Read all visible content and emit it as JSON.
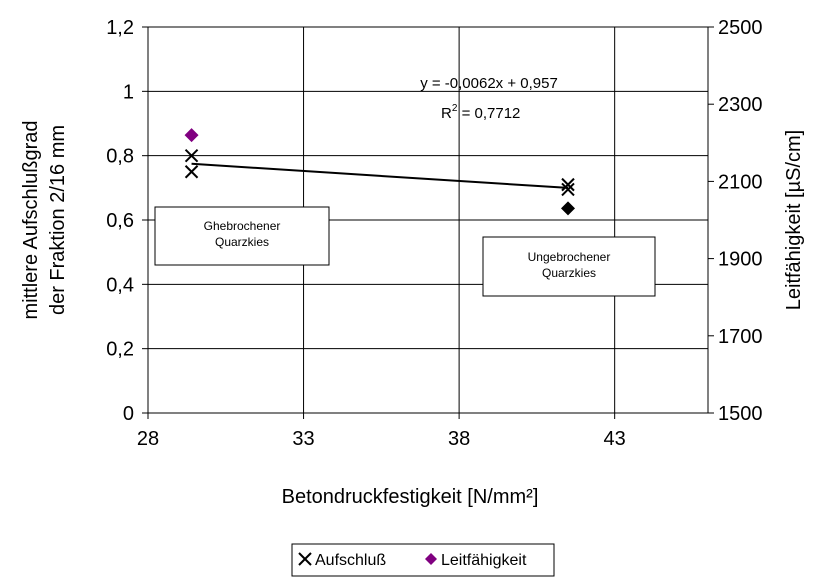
{
  "chart_data": {
    "type": "scatter",
    "xlabel": "Betondruckfestigkeit [N/mm²]",
    "ylabel_line1": "mittlere Aufschlußgrad",
    "ylabel_line2": "der Fraktion 2/16 mm",
    "y2label": "Leitfähigkeit [µS/cm]",
    "xlim": [
      28,
      46
    ],
    "ylim": [
      0,
      1.2
    ],
    "y2lim": [
      1500,
      2500
    ],
    "x_ticks": [
      "28",
      "33",
      "38",
      "43"
    ],
    "x_tick_values": [
      28,
      33,
      38,
      43
    ],
    "y_ticks": [
      "0",
      "0,2",
      "0,4",
      "0,6",
      "0,8",
      "1",
      "1,2"
    ],
    "y_tick_values": [
      0,
      0.2,
      0.4,
      0.6,
      0.8,
      1.0,
      1.2
    ],
    "y2_ticks": [
      "1500",
      "1700",
      "1900",
      "2100",
      "2300",
      "2500"
    ],
    "y2_tick_values": [
      1500,
      1700,
      1900,
      2100,
      2300,
      2500
    ],
    "grid": true,
    "legend_position": "bottom",
    "series": [
      {
        "name": "Aufschluß",
        "axis": "left",
        "marker": "x",
        "color": "#000000",
        "points": [
          {
            "x": 29.4,
            "y": 0.8
          },
          {
            "x": 29.4,
            "y": 0.75
          },
          {
            "x": 41.5,
            "y": 0.71
          },
          {
            "x": 41.5,
            "y": 0.695
          }
        ]
      },
      {
        "name": "Leitfähigkeit",
        "axis": "right",
        "marker": "diamond",
        "color": "#800080",
        "points": [
          {
            "x": 29.4,
            "y": 2220,
            "color": "#800080"
          },
          {
            "x": 41.5,
            "y": 2030,
            "color": "#000000"
          }
        ]
      }
    ],
    "trendline": {
      "slope": -0.0062,
      "intercept": 0.957,
      "x_from": 29.4,
      "x_to": 41.5
    },
    "annotations": {
      "equation": "y = -0,0062x + 0,957",
      "r2_prefix": "R",
      "r2_sup": "2",
      "r2_value": " = 0,7712",
      "box1_line1": "Ghebrochener",
      "box1_line2": "Quarzkies",
      "box2_line1": "Ungebrochener",
      "box2_line2": "Quarzkies"
    },
    "legend": {
      "item1": "Aufschluß",
      "item2": "Leitfähigkeit"
    }
  }
}
